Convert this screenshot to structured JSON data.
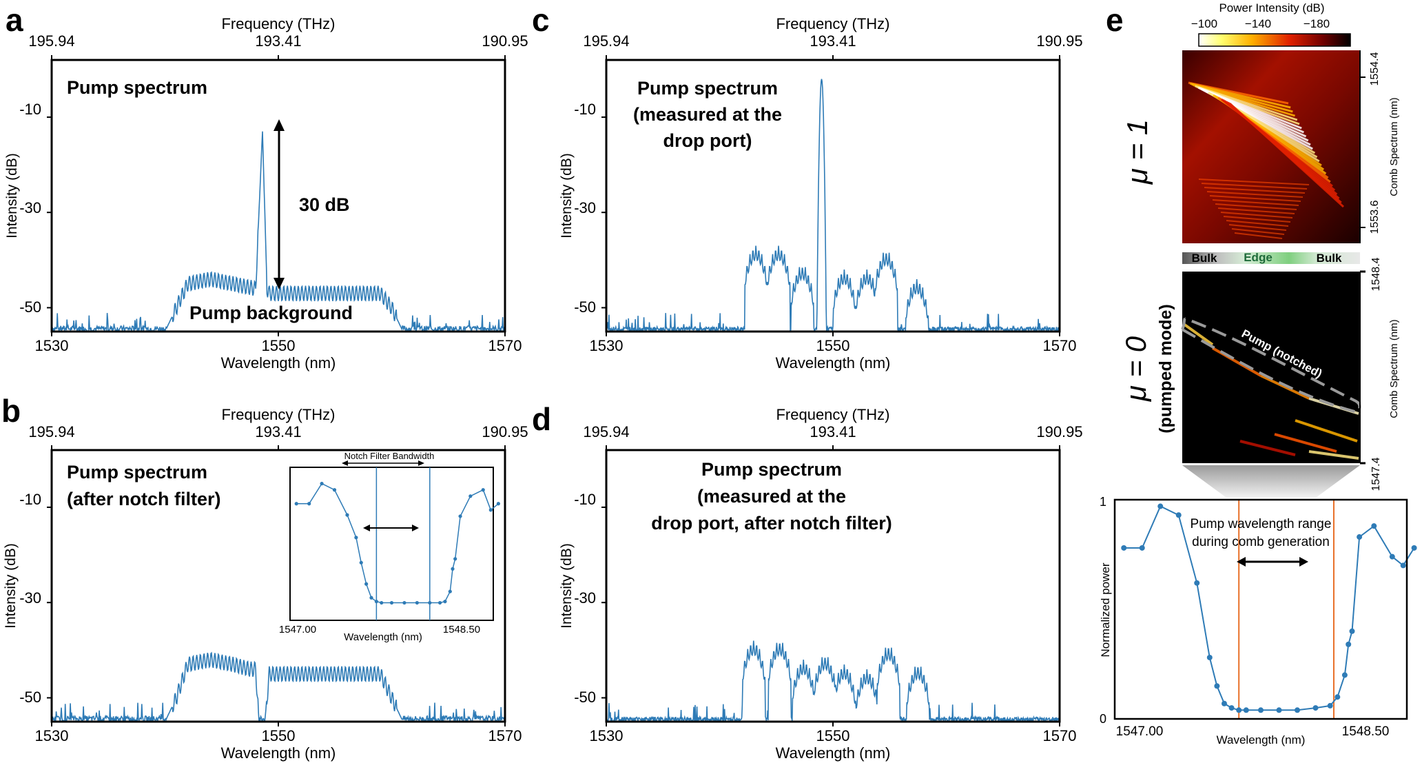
{
  "colors": {
    "line": "#2e7bb6",
    "axis": "#000000",
    "orange": "#e8712a",
    "dash": "#9a9a9a"
  },
  "common": {
    "xlabel": "Wavelength (nm)",
    "ylabel": "Intensity (dB)",
    "top_label": "Frequency (THz)",
    "top_ticks": [
      "195.94",
      "193.41",
      "190.95"
    ],
    "xticks": [
      "1530",
      "1550",
      "1570"
    ],
    "yticks": [
      "-10",
      "-30",
      "-50"
    ]
  },
  "panels": {
    "a": {
      "letter": "a",
      "lines": [
        "Pump spectrum"
      ],
      "arrow_label": "30 dB",
      "background_label": "Pump background"
    },
    "b": {
      "letter": "b",
      "lines": [
        "Pump spectrum",
        "(after notch filter)"
      ],
      "inset": {
        "title": "Notch Filter Bandwidth",
        "xlabel": "Wavelength (nm)",
        "xticks": [
          "1547.00",
          "1548.50"
        ]
      }
    },
    "c": {
      "letter": "c",
      "lines": [
        "Pump spectrum",
        "(measured at the",
        "drop port)"
      ]
    },
    "d": {
      "letter": "d",
      "lines": [
        "Pump spectrum",
        "(measured at the",
        "drop port, after notch filter)"
      ]
    },
    "e": {
      "letter": "e",
      "colorbar_title": "Power Intensity (dB)",
      "colorbar_ticks": [
        "−100",
        "−140",
        "−180"
      ],
      "mu1_label": "μ = 1",
      "mu0_label": "μ = 0",
      "mu0_sub": "(pumped mode)",
      "upper_ticks": [
        "1554.4",
        "1553.6"
      ],
      "lower_ticks": [
        "1548.4",
        "1547.4"
      ],
      "side_label": "Comb Spectrum (nm)",
      "bar_labels": [
        "Bulk",
        "Edge",
        "Bulk"
      ],
      "pump_label": "Pump (notched)",
      "bottom": {
        "ylabel": "Normalized  power",
        "xlabel": "Wavelength (nm)",
        "xticks": [
          "1547.00",
          "1548.50"
        ],
        "yticks": [
          "1",
          "0"
        ],
        "annotation": [
          "Pump wavelength range",
          "during comb generation"
        ]
      }
    }
  },
  "chart_data": [
    {
      "panel": "a",
      "type": "line",
      "title": "Pump spectrum",
      "xlabel": "Wavelength (nm)",
      "ylabel": "Intensity (dB)",
      "xlim": [
        1530,
        1570
      ],
      "ylim": [
        -55,
        2
      ],
      "x": [
        1530,
        1540,
        1541,
        1542,
        1544,
        1546,
        1548,
        1548.6,
        1549,
        1549.2,
        1550,
        1552,
        1554,
        1556,
        1558,
        1559,
        1560,
        1561,
        1570
      ],
      "y": [
        -55,
        -55,
        -50,
        -45,
        -44,
        -45,
        -46,
        -13,
        -46,
        -47,
        -47,
        -47,
        -47,
        -47,
        -47,
        -47,
        -50,
        -55,
        -55
      ]
    },
    {
      "panel": "b",
      "type": "line",
      "title": "Pump spectrum (after notch filter)",
      "xlabel": "Wavelength (nm)",
      "ylabel": "Intensity (dB)",
      "xlim": [
        1530,
        1570
      ],
      "ylim": [
        -55,
        2
      ],
      "x": [
        1530,
        1540,
        1541,
        1542,
        1544,
        1546,
        1547.5,
        1548,
        1548.3,
        1548.8,
        1549.2,
        1552,
        1556,
        1559,
        1560,
        1561,
        1570
      ],
      "y": [
        -55,
        -55,
        -50,
        -43,
        -42,
        -43,
        -44,
        -44,
        -55,
        -55,
        -45,
        -45,
        -45,
        -45,
        -50,
        -55,
        -55
      ]
    },
    {
      "panel": "b-inset",
      "type": "line",
      "xlabel": "Wavelength (nm)",
      "xlim": [
        1547.0,
        1548.6
      ],
      "ylim": [
        0,
        1
      ],
      "x": [
        1547.05,
        1547.15,
        1547.25,
        1547.35,
        1547.45,
        1547.52,
        1547.56,
        1547.6,
        1547.64,
        1547.68,
        1547.72,
        1547.8,
        1547.9,
        1548.0,
        1548.1,
        1548.18,
        1548.22,
        1548.26,
        1548.28,
        1548.3,
        1548.34,
        1548.42,
        1548.52,
        1548.58,
        1548.64
      ],
      "y": [
        0.82,
        0.82,
        0.98,
        0.93,
        0.73,
        0.55,
        0.35,
        0.18,
        0.07,
        0.04,
        0.03,
        0.03,
        0.03,
        0.03,
        0.03,
        0.03,
        0.04,
        0.12,
        0.3,
        0.38,
        0.72,
        0.88,
        0.93,
        0.77,
        0.82
      ],
      "markers": [
        1547.68,
        1548.1
      ]
    },
    {
      "panel": "c",
      "type": "line",
      "title": "Pump spectrum (measured at the drop port)",
      "xlabel": "Wavelength (nm)",
      "ylabel": "Intensity (dB)",
      "xlim": [
        1530,
        1570
      ],
      "ylim": [
        -55,
        2
      ],
      "peaks_x": [
        1543.2,
        1545.2,
        1547.3,
        1549.0,
        1551.0,
        1553.0,
        1554.7,
        1557.4
      ],
      "peaks_y": [
        -37,
        -37,
        -41,
        -2,
        -42,
        -42,
        -38,
        -44
      ],
      "floor": -55
    },
    {
      "panel": "d",
      "type": "line",
      "title": "Pump spectrum (measured at the drop port, after notch filter)",
      "xlabel": "Wavelength (nm)",
      "ylabel": "Intensity (dB)",
      "xlim": [
        1530,
        1570
      ],
      "ylim": [
        -55,
        2
      ],
      "peaks_x": [
        1543.0,
        1545.3,
        1547.4,
        1549.3,
        1551.0,
        1553.0,
        1554.9,
        1557.5
      ],
      "peaks_y": [
        -38,
        -38,
        -42,
        -41,
        -43,
        -44,
        -39,
        -43
      ],
      "floor": -55
    },
    {
      "panel": "e-bottom",
      "type": "line",
      "xlabel": "Wavelength (nm)",
      "ylabel": "Normalized  power",
      "xlim": [
        1547.0,
        1548.6
      ],
      "ylim": [
        0,
        1
      ],
      "x": [
        1547.05,
        1547.15,
        1547.25,
        1547.35,
        1547.45,
        1547.52,
        1547.56,
        1547.6,
        1547.64,
        1547.68,
        1547.72,
        1547.8,
        1547.9,
        1548.0,
        1548.1,
        1548.18,
        1548.22,
        1548.26,
        1548.28,
        1548.3,
        1548.34,
        1548.42,
        1548.52,
        1548.58,
        1548.64
      ],
      "y": [
        0.78,
        0.78,
        0.97,
        0.93,
        0.62,
        0.28,
        0.15,
        0.07,
        0.05,
        0.04,
        0.04,
        0.04,
        0.04,
        0.04,
        0.05,
        0.06,
        0.1,
        0.2,
        0.34,
        0.4,
        0.83,
        0.88,
        0.74,
        0.7,
        0.78
      ],
      "markers": [
        1547.68,
        1548.2
      ]
    }
  ]
}
